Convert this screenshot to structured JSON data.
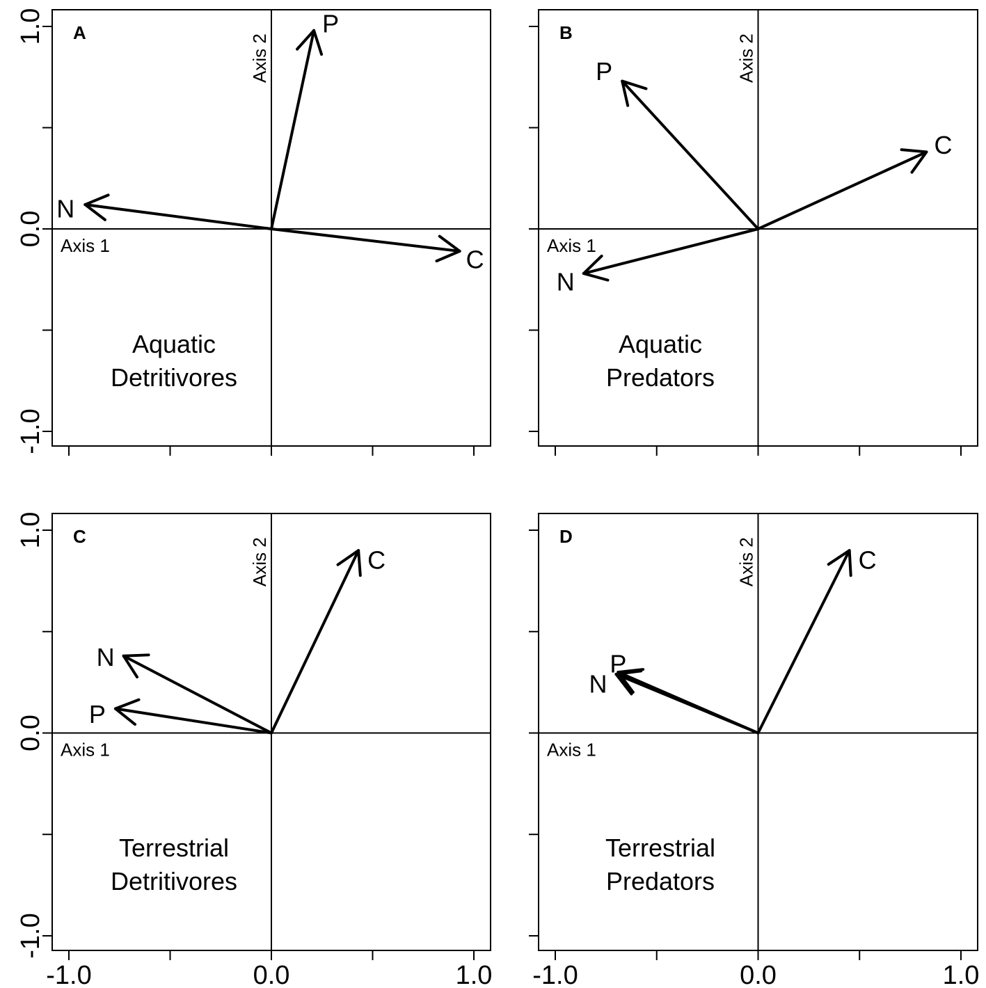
{
  "chart_data": [
    {
      "type": "biplot",
      "panel": "A",
      "title_lines": [
        "Aquatic",
        "Detritivores"
      ],
      "xaxis_label": "Axis 1",
      "yaxis_label": "Axis 2",
      "xlim": [
        -1.0,
        1.0
      ],
      "ylim": [
        -1.0,
        1.0
      ],
      "vectors": [
        {
          "name": "P",
          "x": 0.21,
          "y": 0.98
        },
        {
          "name": "N",
          "x": -0.92,
          "y": 0.12
        },
        {
          "name": "C",
          "x": 0.93,
          "y": -0.11
        }
      ]
    },
    {
      "type": "biplot",
      "panel": "B",
      "title_lines": [
        "Aquatic",
        "Predators"
      ],
      "xaxis_label": "Axis 1",
      "yaxis_label": "Axis 2",
      "xlim": [
        -1.0,
        1.0
      ],
      "ylim": [
        -1.0,
        1.0
      ],
      "vectors": [
        {
          "name": "P",
          "x": -0.67,
          "y": 0.73
        },
        {
          "name": "C",
          "x": 0.83,
          "y": 0.38
        },
        {
          "name": "N",
          "x": -0.86,
          "y": -0.22
        }
      ]
    },
    {
      "type": "biplot",
      "panel": "C",
      "title_lines": [
        "Terrestrial",
        "Detritivores"
      ],
      "xaxis_label": "Axis 1",
      "yaxis_label": "Axis 2",
      "xlim": [
        -1.0,
        1.0
      ],
      "ylim": [
        -1.0,
        1.0
      ],
      "vectors": [
        {
          "name": "C",
          "x": 0.43,
          "y": 0.9
        },
        {
          "name": "N",
          "x": -0.73,
          "y": 0.38
        },
        {
          "name": "P",
          "x": -0.77,
          "y": 0.12
        }
      ]
    },
    {
      "type": "biplot",
      "panel": "D",
      "title_lines": [
        "Terrestrial",
        "Predators"
      ],
      "xaxis_label": "Axis 1",
      "yaxis_label": "Axis 2",
      "xlim": [
        -1.0,
        1.0
      ],
      "ylim": [
        -1.0,
        1.0
      ],
      "vectors": [
        {
          "name": "C",
          "x": 0.45,
          "y": 0.9
        },
        {
          "name": "N",
          "x": -0.7,
          "y": 0.29
        },
        {
          "name": "P",
          "x": -0.69,
          "y": 0.3
        }
      ]
    }
  ],
  "axis_ticks": {
    "x": [
      -1.0,
      -0.5,
      0.0,
      0.5,
      1.0
    ],
    "y": [
      -1.0,
      -0.5,
      0.0,
      0.5,
      1.0
    ],
    "x_labels": [
      "-1.0",
      "0.0",
      "1.0"
    ],
    "y_labels": [
      "-1.0",
      "0.0",
      "1.0"
    ]
  }
}
